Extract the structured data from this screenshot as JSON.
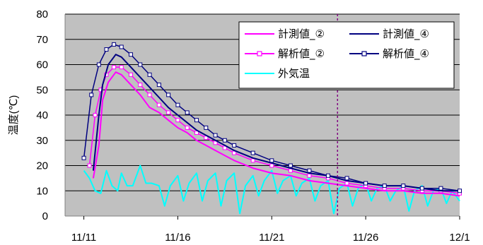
{
  "chart_data": {
    "type": "line",
    "title": "",
    "xlabel": "",
    "ylabel": "温度(℃)",
    "xlim": [
      "11/10",
      "12/01"
    ],
    "ylim": [
      0,
      80
    ],
    "y_ticks": [
      0,
      10,
      20,
      30,
      40,
      50,
      60,
      70,
      80
    ],
    "x_ticks": [
      "11/11",
      "11/16",
      "11/21",
      "11/26",
      "12/1"
    ],
    "plot_background": "#c0c0c0",
    "grid": "horizontal",
    "legend_position": "top-right",
    "vertical_marker": {
      "x": "11/24.5",
      "style": "dotted",
      "color": "#800080"
    },
    "series": [
      {
        "name": "計測値_②",
        "color": "#ff00ff",
        "style": "line",
        "points": [
          [
            "11/11.5",
            15
          ],
          [
            "11/11.8",
            28
          ],
          [
            "11/12.0",
            46
          ],
          [
            "11/12.3",
            53
          ],
          [
            "11/12.7",
            57
          ],
          [
            "11/13.0",
            56
          ],
          [
            "11/13.5",
            52
          ],
          [
            "11/14.0",
            48
          ],
          [
            "11/14.5",
            43
          ],
          [
            "11/15.0",
            41
          ],
          [
            "11/15.5",
            38
          ],
          [
            "11/16.0",
            35
          ],
          [
            "11/16.5",
            33
          ],
          [
            "11/17.0",
            30
          ],
          [
            "11/17.5",
            28
          ],
          [
            "11/18.0",
            26
          ],
          [
            "11/18.5",
            24
          ],
          [
            "11/19.0",
            22
          ],
          [
            "11/20.0",
            19
          ],
          [
            "11/21.0",
            17
          ],
          [
            "11/22.0",
            16
          ],
          [
            "11/23.0",
            14
          ],
          [
            "11/24.0",
            13
          ],
          [
            "11/25.0",
            12
          ],
          [
            "11/26.0",
            11
          ],
          [
            "11/27.0",
            10
          ],
          [
            "11/28.0",
            10
          ],
          [
            "11/29.0",
            9
          ],
          [
            "11/30.0",
            9
          ],
          [
            "12/01.0",
            8
          ]
        ]
      },
      {
        "name": "計測値_④",
        "color": "#000080",
        "style": "line",
        "points": [
          [
            "11/11.5",
            18
          ],
          [
            "11/11.8",
            40
          ],
          [
            "11/12.0",
            52
          ],
          [
            "11/12.3",
            60
          ],
          [
            "11/12.7",
            64
          ],
          [
            "11/13.0",
            63
          ],
          [
            "11/13.5",
            59
          ],
          [
            "11/14.0",
            55
          ],
          [
            "11/14.5",
            51
          ],
          [
            "11/15.0",
            47
          ],
          [
            "11/15.5",
            43
          ],
          [
            "11/16.0",
            40
          ],
          [
            "11/16.5",
            37
          ],
          [
            "11/17.0",
            34
          ],
          [
            "11/17.5",
            32
          ],
          [
            "11/18.0",
            30
          ],
          [
            "11/18.5",
            28
          ],
          [
            "11/19.0",
            26
          ],
          [
            "11/20.0",
            23
          ],
          [
            "11/21.0",
            21
          ],
          [
            "11/22.0",
            19
          ],
          [
            "11/23.0",
            17
          ],
          [
            "11/24.0",
            16
          ],
          [
            "11/25.0",
            14
          ],
          [
            "11/26.0",
            13
          ],
          [
            "11/27.0",
            12
          ],
          [
            "11/28.0",
            12
          ],
          [
            "11/29.0",
            11
          ],
          [
            "11/30.0",
            10
          ],
          [
            "12/01.0",
            10
          ]
        ]
      },
      {
        "name": "解析値_②",
        "color": "#ff00ff",
        "style": "line-square",
        "points": [
          [
            "11/11.3",
            20
          ],
          [
            "11/11.6",
            40
          ],
          [
            "11/11.9",
            50
          ],
          [
            "11/12.2",
            56
          ],
          [
            "11/12.6",
            59
          ],
          [
            "11/13.0",
            59
          ],
          [
            "11/13.5",
            56
          ],
          [
            "11/14.0",
            52
          ],
          [
            "11/14.5",
            48
          ],
          [
            "11/15.0",
            44
          ],
          [
            "11/15.5",
            41
          ],
          [
            "11/16.0",
            38
          ],
          [
            "11/16.5",
            35
          ],
          [
            "11/17.0",
            33
          ],
          [
            "11/17.5",
            31
          ],
          [
            "11/18.0",
            29
          ],
          [
            "11/18.5",
            27
          ],
          [
            "11/19.0",
            25
          ],
          [
            "11/20.0",
            22
          ],
          [
            "11/21.0",
            20
          ],
          [
            "11/22.0",
            18
          ],
          [
            "11/23.0",
            16
          ],
          [
            "11/24.0",
            15
          ],
          [
            "11/25.0",
            13
          ],
          [
            "11/26.0",
            12
          ],
          [
            "11/27.0",
            11
          ],
          [
            "11/28.0",
            11
          ],
          [
            "11/29.0",
            10
          ],
          [
            "11/30.0",
            10
          ],
          [
            "12/01.0",
            9
          ]
        ]
      },
      {
        "name": "解析値_④",
        "color": "#000080",
        "style": "line-square",
        "points": [
          [
            "11/11.0",
            23
          ],
          [
            "11/11.4",
            48
          ],
          [
            "11/11.8",
            60
          ],
          [
            "11/12.2",
            66
          ],
          [
            "11/12.6",
            68
          ],
          [
            "11/13.0",
            67
          ],
          [
            "11/13.5",
            64
          ],
          [
            "11/14.0",
            60
          ],
          [
            "11/14.5",
            56
          ],
          [
            "11/15.0",
            52
          ],
          [
            "11/15.5",
            48
          ],
          [
            "11/16.0",
            44
          ],
          [
            "11/16.5",
            41
          ],
          [
            "11/17.0",
            38
          ],
          [
            "11/17.5",
            35
          ],
          [
            "11/18.0",
            32
          ],
          [
            "11/18.5",
            30
          ],
          [
            "11/19.0",
            28
          ],
          [
            "11/20.0",
            25
          ],
          [
            "11/21.0",
            22
          ],
          [
            "11/22.0",
            20
          ],
          [
            "11/23.0",
            18
          ],
          [
            "11/24.0",
            16
          ],
          [
            "11/25.0",
            15
          ],
          [
            "11/26.0",
            13
          ],
          [
            "11/27.0",
            12
          ],
          [
            "11/28.0",
            12
          ],
          [
            "11/29.0",
            11
          ],
          [
            "11/30.0",
            11
          ],
          [
            "12/01.0",
            10
          ]
        ]
      },
      {
        "name": "外気温",
        "color": "#00ffff",
        "style": "line",
        "points": [
          [
            "11/11.0",
            18
          ],
          [
            "11/11.3",
            15
          ],
          [
            "11/11.6",
            10
          ],
          [
            "11/11.9",
            9
          ],
          [
            "11/12.2",
            18
          ],
          [
            "11/12.5",
            12
          ],
          [
            "11/12.8",
            10
          ],
          [
            "11/13.0",
            17
          ],
          [
            "11/13.3",
            12
          ],
          [
            "11/13.6",
            12
          ],
          [
            "11/14.0",
            20
          ],
          [
            "11/14.3",
            13
          ],
          [
            "11/14.6",
            13
          ],
          [
            "11/15.0",
            12
          ],
          [
            "11/15.3",
            4
          ],
          [
            "11/15.6",
            12
          ],
          [
            "11/16.0",
            16
          ],
          [
            "11/16.3",
            6
          ],
          [
            "11/16.6",
            13
          ],
          [
            "11/17.0",
            17
          ],
          [
            "11/17.3",
            6
          ],
          [
            "11/17.6",
            14
          ],
          [
            "11/18.0",
            17
          ],
          [
            "11/18.3",
            4
          ],
          [
            "11/18.6",
            14
          ],
          [
            "11/19.0",
            17
          ],
          [
            "11/19.3",
            1
          ],
          [
            "11/19.6",
            12
          ],
          [
            "11/20.0",
            16
          ],
          [
            "11/20.3",
            8
          ],
          [
            "11/20.6",
            14
          ],
          [
            "11/21.0",
            18
          ],
          [
            "11/21.3",
            9
          ],
          [
            "11/21.6",
            14
          ],
          [
            "11/22.0",
            16
          ],
          [
            "11/22.3",
            8
          ],
          [
            "11/22.6",
            13
          ],
          [
            "11/23.0",
            15
          ],
          [
            "11/23.3",
            6
          ],
          [
            "11/23.6",
            12
          ],
          [
            "11/24.0",
            14
          ],
          [
            "11/24.3",
            1
          ],
          [
            "11/24.6",
            11
          ],
          [
            "11/25.0",
            13
          ],
          [
            "11/25.3",
            4
          ],
          [
            "11/25.6",
            11
          ],
          [
            "11/26.0",
            13
          ],
          [
            "11/26.3",
            6
          ],
          [
            "11/26.6",
            11
          ],
          [
            "11/27.0",
            12
          ],
          [
            "11/27.3",
            6
          ],
          [
            "11/27.6",
            10
          ],
          [
            "11/28.0",
            12
          ],
          [
            "11/28.3",
            2
          ],
          [
            "11/28.6",
            10
          ],
          [
            "11/29.0",
            12
          ],
          [
            "11/29.3",
            4
          ],
          [
            "11/29.6",
            10
          ],
          [
            "11/30.0",
            11
          ],
          [
            "11/30.3",
            5
          ],
          [
            "11/30.6",
            10
          ],
          [
            "12/01.0",
            6
          ]
        ]
      }
    ],
    "legend_entries": [
      "計測値_②",
      "計測値_④",
      "解析値_②",
      "解析値_④",
      "外気温"
    ]
  }
}
